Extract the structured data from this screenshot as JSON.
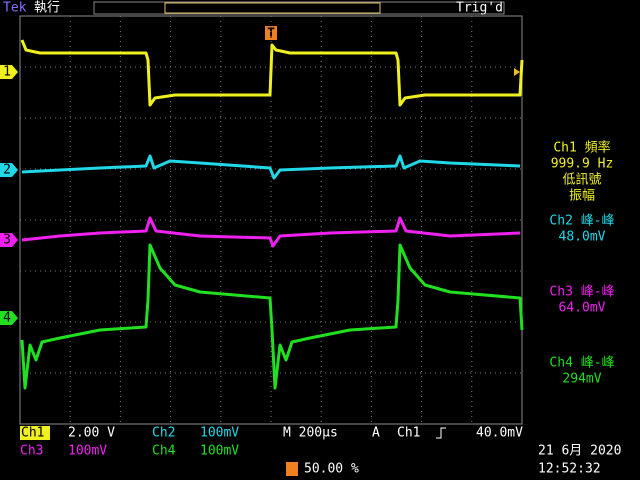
{
  "header": {
    "brand": "Tek",
    "status": "執行",
    "trigger_state": "Trig'd"
  },
  "markers": {
    "ch1": "1",
    "ch2": "2",
    "ch3": "3",
    "ch4": "4",
    "trigger": "T"
  },
  "measurements": [
    {
      "label": "Ch1 頻率",
      "value": "999.9 Hz",
      "note1": "低訊號",
      "note2": "振幅"
    },
    {
      "label": "Ch2 峰-峰",
      "value": "48.0mV"
    },
    {
      "label": "Ch3 峰-峰",
      "value": "64.0mV"
    },
    {
      "label": "Ch4 峰-峰",
      "value": "294mV"
    }
  ],
  "status_bar": {
    "ch1": {
      "name": "Ch1",
      "scale": "2.00 V"
    },
    "ch2": {
      "name": "Ch2",
      "scale": "100mV"
    },
    "ch3": {
      "name": "Ch3",
      "scale": "100mV"
    },
    "ch4": {
      "name": "Ch4",
      "scale": "100mV"
    },
    "timebase": "M 200µs",
    "trigger": {
      "mode": "A",
      "source": "Ch1",
      "level": "40.0mV"
    },
    "trigger_position": "50.00 %",
    "date": "21 6月  2020",
    "time": "12:52:32"
  }
}
